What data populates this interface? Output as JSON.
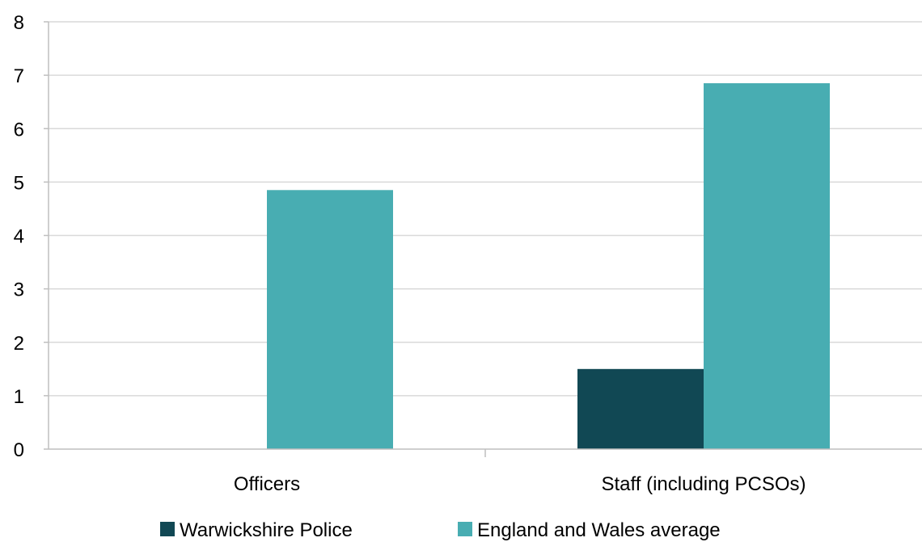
{
  "chart_data": {
    "type": "bar",
    "categories": [
      "Officers",
      "Staff (including PCSOs)"
    ],
    "series": [
      {
        "name": "Warwickshire Police",
        "values": [
          0,
          1.5
        ],
        "color": "#114854"
      },
      {
        "name": "England and Wales average",
        "values": [
          4.85,
          6.85
        ],
        "color": "#48adb2"
      }
    ],
    "ylim": [
      0,
      8
    ],
    "yticks": [
      0,
      1,
      2,
      3,
      4,
      5,
      6,
      7,
      8
    ],
    "grid": true,
    "legend_position": "bottom",
    "colors": {
      "gridline": "#d9d9d9",
      "axis": "#bfbfbf"
    }
  }
}
